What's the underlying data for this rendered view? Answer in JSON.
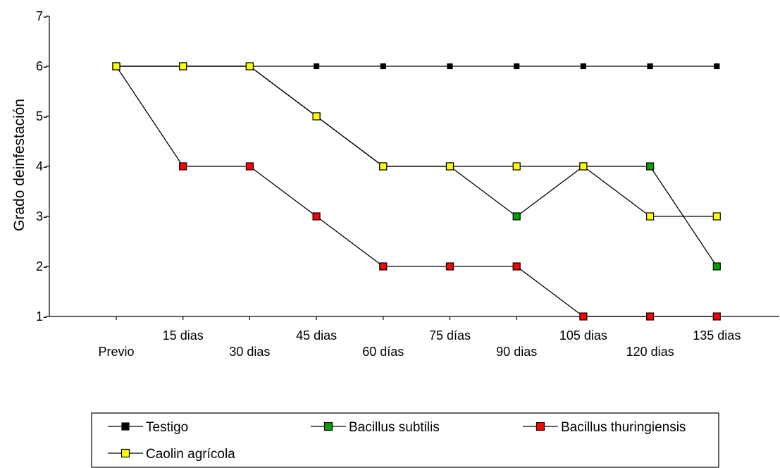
{
  "chart_data": {
    "type": "line",
    "title": "",
    "xlabel": "",
    "ylabel": "Grado deinfestación",
    "ylim": [
      1,
      7
    ],
    "yticks": [
      1,
      2,
      3,
      4,
      5,
      6,
      7
    ],
    "categories": [
      "Previo",
      "15 dias",
      "30 dias",
      "45 dias",
      "60 días",
      "75 días",
      "90 dias",
      "105 dias",
      "120 dias",
      "135 dias"
    ],
    "grid": false,
    "legend_position": "bottom",
    "series": [
      {
        "name": "Testigo",
        "color": "#000000",
        "values": [
          6,
          6,
          6,
          6,
          6,
          6,
          6,
          6,
          6,
          6
        ]
      },
      {
        "name": "Bacillus subtilis",
        "color": "#00a000",
        "values": [
          6,
          6,
          6,
          5,
          4,
          4,
          3,
          4,
          4,
          2
        ]
      },
      {
        "name": "Bacillus thuringiensis",
        "color": "#ff0000",
        "values": [
          6,
          4,
          4,
          3,
          2,
          2,
          2,
          1,
          1,
          1
        ]
      },
      {
        "name": "Caolin agrícola",
        "color": "#ffff00",
        "values": [
          6,
          6,
          6,
          5,
          4,
          4,
          4,
          4,
          3,
          3
        ]
      }
    ]
  }
}
